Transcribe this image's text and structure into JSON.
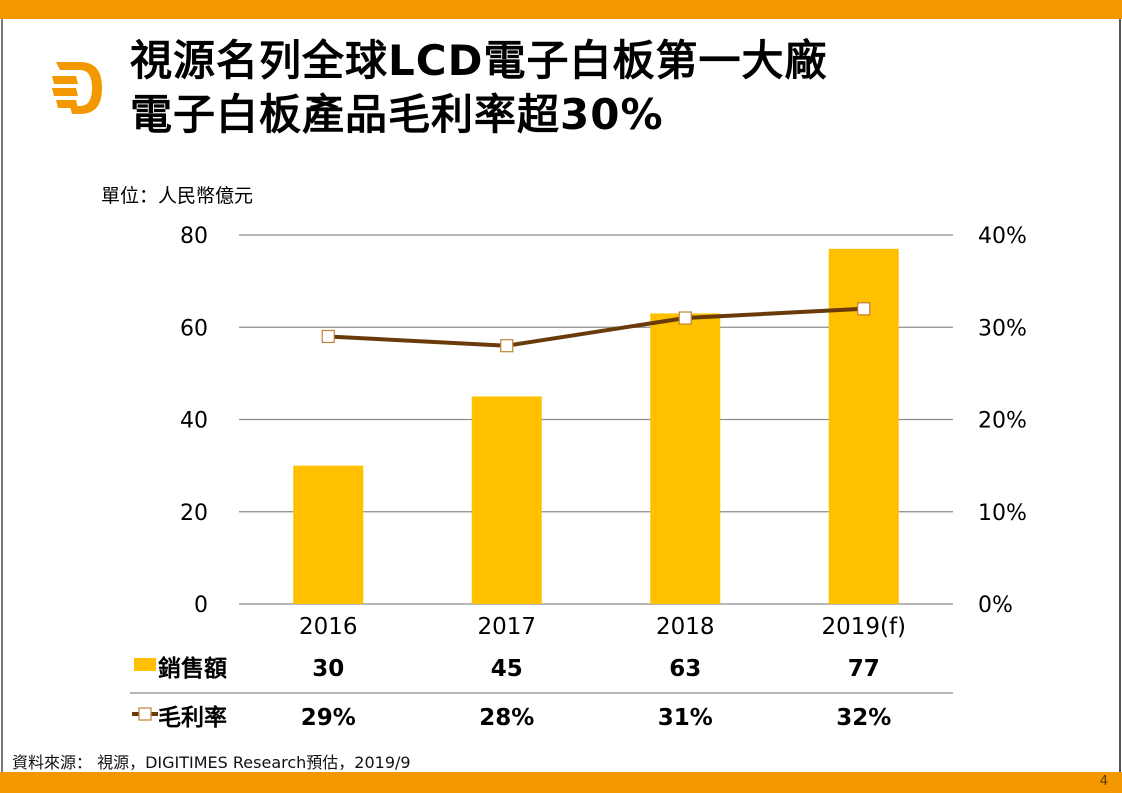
{
  "slide": {
    "title_line1": "視源名列全球LCD電子白板第一大廠",
    "title_line2": "電子白板產品毛利率超30%",
    "unit": "單位：人民幣億元",
    "source": "資料來源： 視源，DIGITIMES Research預估，2019/9",
    "page_number": "4",
    "logo_icon": "digitimes-logo-icon",
    "colors": {
      "accent": "#f39800",
      "bar": "#ffc000",
      "line": "#6b3a0a"
    }
  },
  "chart_data": {
    "type": "bar",
    "title": "",
    "categories": [
      "2016",
      "2017",
      "2018",
      "2019(f)"
    ],
    "series": [
      {
        "name": "銷售額",
        "type": "bar",
        "axis": "left",
        "values": [
          30,
          45,
          63,
          77
        ],
        "labels": [
          "30",
          "45",
          "63",
          "77"
        ]
      },
      {
        "name": "毛利率",
        "type": "line",
        "axis": "right",
        "values": [
          29,
          28,
          31,
          32
        ],
        "labels": [
          "29%",
          "28%",
          "31%",
          "32%"
        ]
      }
    ],
    "y_left": {
      "min": 0,
      "max": 80,
      "ticks": [
        "0",
        "20",
        "40",
        "60",
        "80"
      ],
      "tick_values": [
        0,
        20,
        40,
        60,
        80
      ]
    },
    "y_right": {
      "min": 0,
      "max": 40,
      "ticks": [
        "0%",
        "10%",
        "20%",
        "30%",
        "40%"
      ],
      "tick_values": [
        0,
        10,
        20,
        30,
        40
      ]
    },
    "xlabel": "",
    "ylabel": "單位：人民幣億元",
    "grid": true,
    "legend": "data-table-bottom"
  }
}
